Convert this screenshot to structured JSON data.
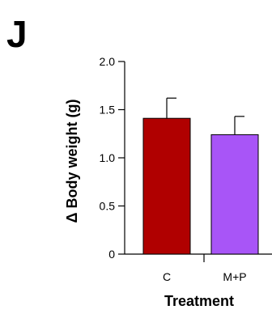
{
  "panel_label": "J",
  "chart_data": {
    "type": "bar",
    "title": "",
    "xlabel": "Treatment",
    "ylabel": "Δ Body weight (g)",
    "ylim": [
      0,
      2.0
    ],
    "yticks": [
      0,
      0.5,
      1.0,
      1.5,
      2.0
    ],
    "ytick_labels": [
      "0",
      "0.5",
      "1.0",
      "1.5",
      "2.0"
    ],
    "categories": [
      "C",
      "M+P"
    ],
    "values": [
      1.41,
      1.24
    ],
    "errors": [
      0.21,
      0.19
    ],
    "colors": [
      "#b00000",
      "#a855f7"
    ],
    "grid": false,
    "legend": "none"
  }
}
